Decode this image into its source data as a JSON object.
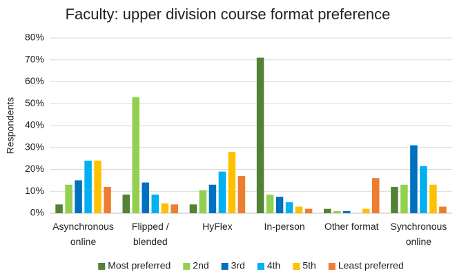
{
  "chart_data": {
    "type": "bar",
    "title": "Faculty:  upper division course format preference",
    "y_label": "Respondents",
    "categories": [
      "Asynchronous online",
      "Flipped / blended",
      "HyFlex",
      "In-person",
      "Other format",
      "Synchronous online"
    ],
    "series": [
      {
        "name": "Most preferred",
        "color": "#548235",
        "values": [
          4,
          8.5,
          4,
          71,
          2,
          12
        ]
      },
      {
        "name": "2nd",
        "color": "#92d050",
        "values": [
          13,
          53,
          10.5,
          8.5,
          1,
          13
        ]
      },
      {
        "name": "3rd",
        "color": "#0070c0",
        "values": [
          15,
          14,
          13,
          7.5,
          1,
          31
        ]
      },
      {
        "name": "4th",
        "color": "#00b0f0",
        "values": [
          24,
          8.5,
          19,
          5,
          0,
          21.5
        ]
      },
      {
        "name": "5th",
        "color": "#ffc000",
        "values": [
          24,
          4.5,
          28,
          3,
          2,
          13
        ]
      },
      {
        "name": "Least preferred",
        "color": "#ed7d31",
        "values": [
          12,
          4,
          17,
          2,
          16,
          3
        ]
      }
    ],
    "ylim": [
      0,
      80
    ],
    "yticks": [
      {
        "value": 0,
        "label": "0%"
      },
      {
        "value": 10,
        "label": "10%"
      },
      {
        "value": 20,
        "label": "20%"
      },
      {
        "value": 30,
        "label": "30%"
      },
      {
        "value": 40,
        "label": "40%"
      },
      {
        "value": 50,
        "label": "50%"
      },
      {
        "value": 60,
        "label": "60%"
      },
      {
        "value": 70,
        "label": "70%"
      },
      {
        "value": 80,
        "label": "80%"
      }
    ],
    "grid": true,
    "legend": "bottom"
  }
}
